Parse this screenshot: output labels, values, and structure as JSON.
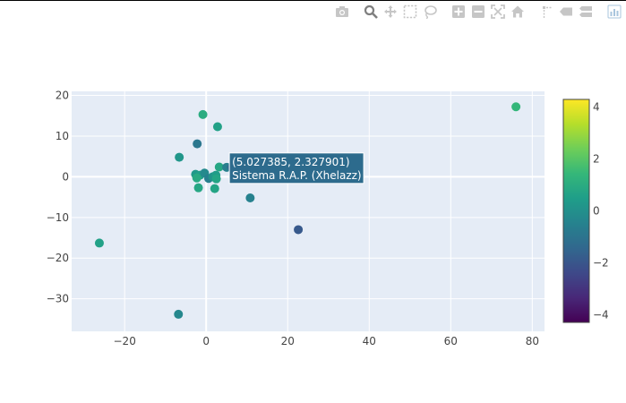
{
  "modebar": {
    "buttons": [
      {
        "icon": "camera-icon",
        "group": 0
      },
      {
        "icon": "zoom-icon",
        "group": 1
      },
      {
        "icon": "pan-icon",
        "group": 1
      },
      {
        "icon": "box-select-icon",
        "group": 1
      },
      {
        "icon": "lasso-select-icon",
        "group": 1
      },
      {
        "icon": "zoom-in-icon",
        "group": 2
      },
      {
        "icon": "zoom-out-icon",
        "group": 2
      },
      {
        "icon": "autoscale-icon",
        "group": 2
      },
      {
        "icon": "reset-axes-icon",
        "group": 2
      },
      {
        "icon": "spike-lines-icon",
        "group": 3
      },
      {
        "icon": "hover-closest-icon",
        "group": 3
      },
      {
        "icon": "hover-compare-icon",
        "group": 3
      },
      {
        "icon": "plotly-logo-icon",
        "group": 4
      }
    ],
    "active_tool": "zoom-icon",
    "colors": {
      "icon": "#c6c6c6",
      "icon_active": "#7f7f7f",
      "logo": "#a8c5dd"
    }
  },
  "chart_data": {
    "type": "scatter",
    "title": "",
    "xlabel": "",
    "ylabel": "",
    "xlim": [
      -33,
      83
    ],
    "ylim": [
      -38,
      21
    ],
    "xticks": [
      -20,
      0,
      20,
      40,
      60,
      80
    ],
    "xtick_labels": [
      "−20",
      "0",
      "20",
      "40",
      "60",
      "80"
    ],
    "yticks": [
      -30,
      -20,
      -10,
      0,
      10,
      20
    ],
    "ytick_labels": [
      "−30",
      "−20",
      "−10",
      "0",
      "10",
      "20"
    ],
    "grid": true,
    "colorscale": "Viridis",
    "color_range": [
      -4.3,
      4.3
    ],
    "colorbar_ticks": [
      -4,
      -2,
      0,
      2,
      4
    ],
    "colorbar_tick_labels": [
      "−4",
      "−2",
      "0",
      "2",
      "4"
    ],
    "points": [
      {
        "x": 76.0,
        "y": 17.2,
        "c": 1.4
      },
      {
        "x": -0.8,
        "y": 15.3,
        "c": 1.0
      },
      {
        "x": 2.8,
        "y": 12.3,
        "c": 0.6
      },
      {
        "x": -2.2,
        "y": 8.1,
        "c": -0.9
      },
      {
        "x": -6.6,
        "y": 4.8,
        "c": 0.2
      },
      {
        "x": 3.2,
        "y": 2.4,
        "c": 0.8
      },
      {
        "x": 5.027385,
        "y": 2.327901,
        "c": -0.6
      },
      {
        "x": -2.6,
        "y": 0.6,
        "c": 0.3
      },
      {
        "x": -1.5,
        "y": 0.4,
        "c": 0.5
      },
      {
        "x": -0.4,
        "y": 0.9,
        "c": -0.2
      },
      {
        "x": 0.6,
        "y": -0.4,
        "c": -0.6
      },
      {
        "x": 1.6,
        "y": 0.0,
        "c": 0.1
      },
      {
        "x": 2.4,
        "y": 0.4,
        "c": 0.4
      },
      {
        "x": 2.5,
        "y": -0.5,
        "c": 0.7
      },
      {
        "x": -2.3,
        "y": -0.3,
        "c": 0.9
      },
      {
        "x": 7.2,
        "y": -0.3,
        "c": 1.2
      },
      {
        "x": -1.9,
        "y": -2.7,
        "c": 0.8
      },
      {
        "x": 2.1,
        "y": -2.9,
        "c": 0.7
      },
      {
        "x": 10.8,
        "y": -5.2,
        "c": -0.5
      },
      {
        "x": 22.6,
        "y": -13.0,
        "c": -1.9
      },
      {
        "x": -26.2,
        "y": -16.3,
        "c": 0.6
      },
      {
        "x": -6.8,
        "y": -33.8,
        "c": -0.3
      }
    ],
    "hover": {
      "x": 5.027385,
      "y": 2.327901,
      "line1": "(5.027385, 2.327901)",
      "line2": "Sistema R.A.P. (Xhelazz)"
    }
  }
}
